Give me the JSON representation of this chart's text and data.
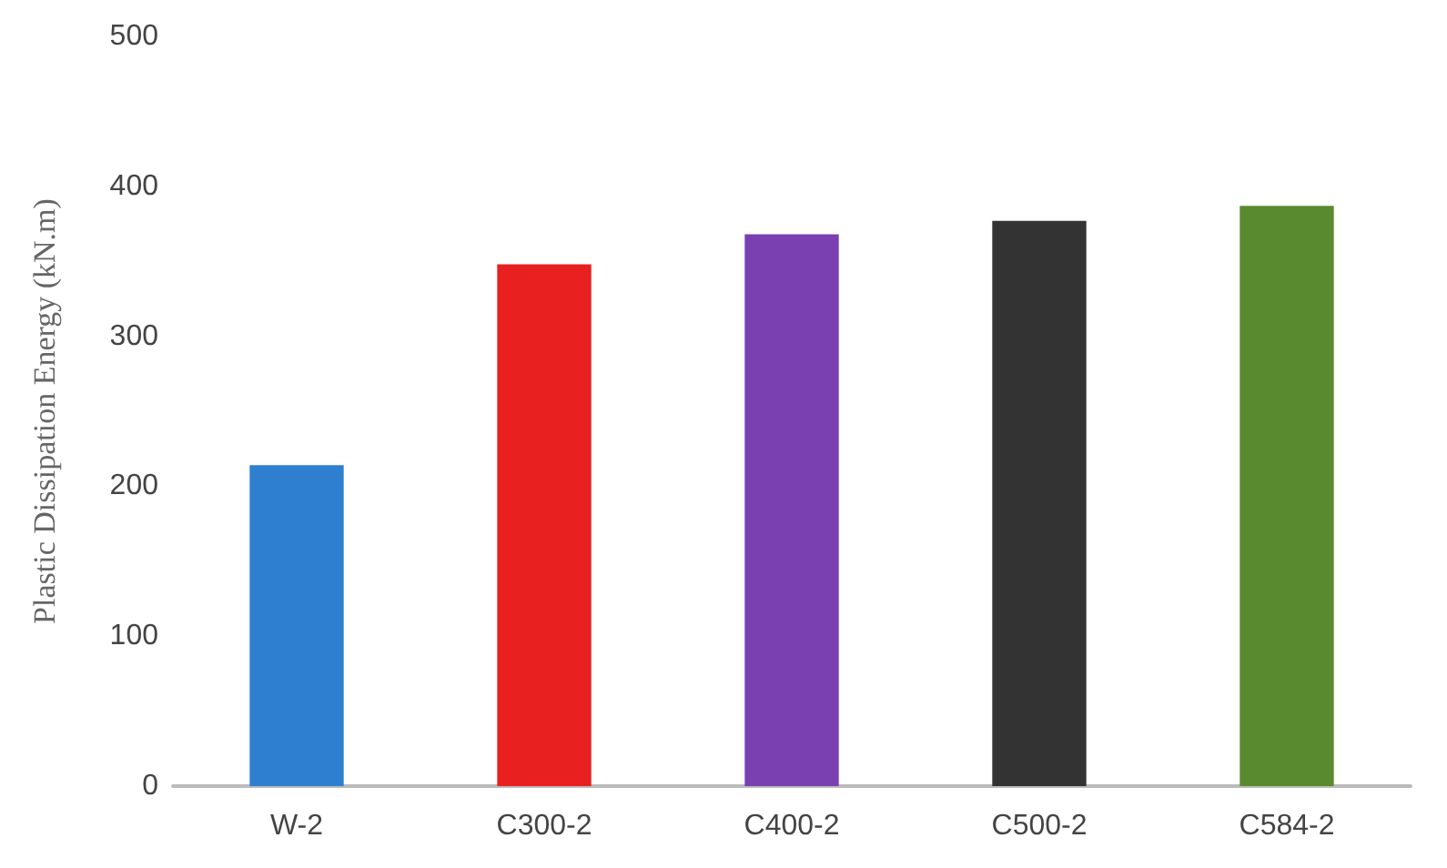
{
  "chart_data": {
    "type": "bar",
    "ylabel": "Plastic Dissipation Energy (kN.m)",
    "categories": [
      "W-2",
      "C300-2",
      "C400-2",
      "C500-2",
      "C584-2"
    ],
    "values": [
      214,
      348,
      368,
      377,
      387
    ],
    "colors": [
      "#2e7fd0",
      "#e82020",
      "#7a3fb0",
      "#333333",
      "#5a8a30"
    ],
    "ylim": [
      0,
      500
    ],
    "yticks": [
      0,
      100,
      200,
      300,
      400,
      500
    ],
    "grid": false
  }
}
